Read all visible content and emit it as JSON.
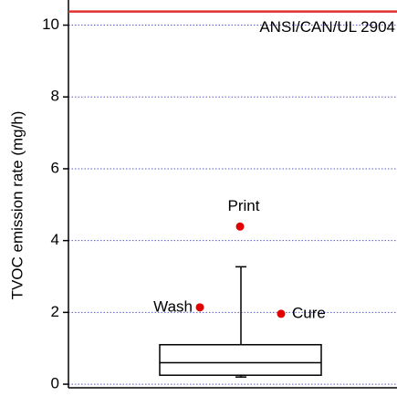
{
  "chart_data": {
    "type": "box",
    "y_label": "TVOC emission rate (mg/h)",
    "ylim": [
      -0.1,
      10.7
    ],
    "yticks": [
      0,
      2,
      4,
      6,
      8,
      10
    ],
    "grid": true,
    "box": {
      "whisker_low": 0.2,
      "q1": 0.25,
      "median": 0.6,
      "q3": 1.1,
      "whisker_high": 3.27,
      "color": "#000000"
    },
    "outliers": [
      {
        "name": "Wash",
        "value": 2.14
      },
      {
        "name": "Print",
        "value": 4.39
      },
      {
        "name": "Cure",
        "value": 1.96
      }
    ],
    "outlier_color": "#e00000",
    "threshold": {
      "label": "ANSI/CAN/UL 2904",
      "value": 10.38,
      "color": "#e03030"
    }
  }
}
